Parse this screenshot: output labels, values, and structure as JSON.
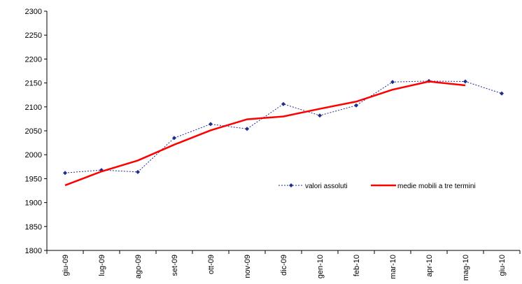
{
  "chart_data": {
    "type": "line",
    "categories": [
      "giu-09",
      "lug-09",
      "ago-09",
      "set-09",
      "ott-09",
      "nov-09",
      "dic-09",
      "gen-10",
      "feb-10",
      "mar-10",
      "apr-10",
      "mag-10",
      "giu-10"
    ],
    "series": [
      {
        "name": "valori assoluti",
        "color": "#1f2d8c",
        "values": [
          1962,
          1968,
          1964,
          2035,
          2064,
          2054,
          2106,
          2082,
          2103,
          2152,
          2154,
          2153,
          2128
        ]
      },
      {
        "name": "medie mobili a tre termini",
        "color": "#ff0000",
        "values": [
          1936,
          1965,
          1988,
          2021,
          2051,
          2074,
          2080,
          2096,
          2111,
          2136,
          2153,
          2145,
          null
        ]
      }
    ],
    "ylim": [
      1800,
      2300
    ],
    "yticks": [
      1800,
      1850,
      1900,
      1950,
      2000,
      2050,
      2100,
      2150,
      2200,
      2250,
      2300
    ],
    "grid": false,
    "legend": "right"
  }
}
